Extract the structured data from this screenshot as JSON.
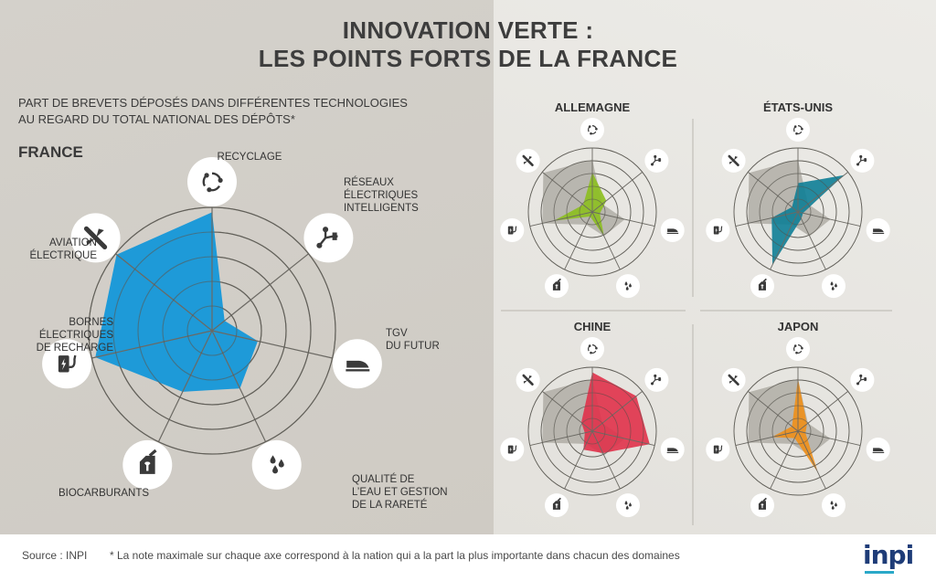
{
  "title_line1": "INNOVATION VERTE :",
  "title_line2": "LES POINTS FORTS DE LA FRANCE",
  "subtitle_line1": "PART DE BREVETS DÉPOSÉS DANS DIFFÉRENTES TECHNOLOGIES",
  "subtitle_line2": "AU REGARD DU TOTAL NATIONAL DES DÉPÔTS*",
  "axes": [
    {
      "key": "recyclage",
      "label_lines": [
        "RECYCLAGE"
      ],
      "icon": "recycle-icon"
    },
    {
      "key": "reseaux",
      "label_lines": [
        "RÉSEAUX",
        "ÉLECTRIQUES",
        "INTELLIGENTS"
      ],
      "icon": "smart-grid-icon"
    },
    {
      "key": "tgv",
      "label_lines": [
        "TGV",
        "DU FUTUR"
      ],
      "icon": "high-speed-train-icon"
    },
    {
      "key": "eau",
      "label_lines": [
        "QUALITÉ DE",
        "L’EAU ET GESTION",
        "DE LA RARETÉ"
      ],
      "icon": "water-drops-icon"
    },
    {
      "key": "biocarburants",
      "label_lines": [
        "BIOCARBURANTS"
      ],
      "icon": "fuel-can-icon"
    },
    {
      "key": "bornes",
      "label_lines": [
        "BORNES",
        "ÉLECTRIQUES",
        "DE RECHARGE"
      ],
      "icon": "charging-station-icon"
    },
    {
      "key": "aviation",
      "label_lines": [
        "AVIATION",
        "ÉLECTRIQUE"
      ],
      "icon": "airplane-icon"
    }
  ],
  "colors": {
    "france": "#1e9ad8",
    "allemagne": "#8cbf1f",
    "etats_unis": "#0e7e96",
    "chine": "#e0314a",
    "japon": "#ef8f18",
    "grey_area": "#a8a59e"
  },
  "chart_data": [
    {
      "type": "radar",
      "name": "FRANCE",
      "categories": [
        "RECYCLAGE",
        "RÉSEAUX ÉLECTRIQUES INTELLIGENTS",
        "TGV DU FUTUR",
        "QUALITÉ DE L’EAU ET GESTION DE LA RARETÉ",
        "BIOCARBURANTS",
        "BORNES ÉLECTRIQUES DE RECHARGE",
        "AVIATION ÉLECTRIQUE"
      ],
      "values": [
        0.96,
        0.13,
        0.38,
        0.52,
        0.55,
        0.97,
        0.99
      ],
      "rings": 5,
      "max": 1
    },
    {
      "type": "radar",
      "name": "ALLEMAGNE",
      "values": [
        0.62,
        0.28,
        0.12,
        0.42,
        0.08,
        0.62,
        0.18
      ],
      "grey_values": [
        0.82,
        0.2,
        0.52,
        0.42,
        0.22,
        0.8,
        0.98
      ],
      "rings": 5,
      "max": 1
    },
    {
      "type": "radar",
      "name": "ÉTATS-UNIS",
      "values": [
        0.45,
        0.92,
        0.08,
        0.12,
        0.92,
        0.42,
        0.12
      ],
      "grey_values": [
        0.82,
        0.2,
        0.52,
        0.42,
        0.22,
        0.8,
        0.98
      ],
      "rings": 5,
      "max": 1
    },
    {
      "type": "radar",
      "name": "CHINE",
      "values": [
        0.92,
        0.88,
        0.92,
        0.38,
        0.32,
        0.12,
        0.22
      ],
      "grey_values": [
        0.82,
        0.2,
        0.52,
        0.42,
        0.22,
        0.8,
        0.98
      ],
      "rings": 5,
      "max": 1
    },
    {
      "type": "radar",
      "name": "JAPON",
      "values": [
        0.82,
        0.18,
        0.12,
        0.72,
        0.12,
        0.42,
        0.12
      ],
      "grey_values": [
        0.82,
        0.2,
        0.52,
        0.42,
        0.22,
        0.8,
        0.98
      ],
      "rings": 5,
      "max": 1
    }
  ],
  "footer": {
    "source": "Source : INPI",
    "note": "* La note maximale sur chaque axe correspond à la nation qui a la part la plus importante dans chacun des domaines",
    "logo": "inpi"
  }
}
